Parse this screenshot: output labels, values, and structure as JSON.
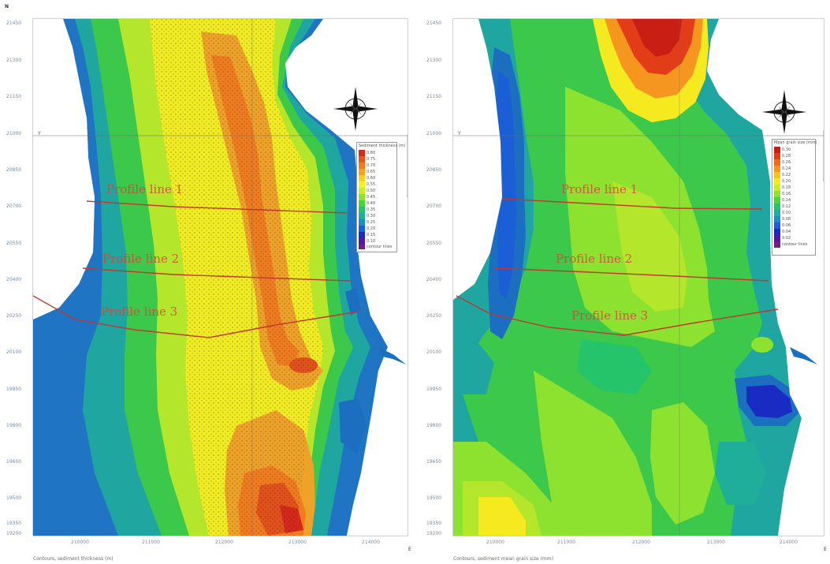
{
  "maps": [
    {
      "id": "left",
      "y_ticks": [
        "21450",
        "21300",
        "21150",
        "21000",
        "20850",
        "20700",
        "20550",
        "20400",
        "20250",
        "20100",
        "19950",
        "19800",
        "19650",
        "19500",
        "19350",
        "19200"
      ],
      "x_ticks": [
        "210000",
        "211000",
        "212000",
        "213000",
        "214000"
      ],
      "corner_label": "N",
      "axis_end_label": "E",
      "grid_label": "Y",
      "caption": "Contours, sediment thickness (m)",
      "profile_labels": [
        "Profile line 1",
        "Profile line 2",
        "Profile line 3"
      ],
      "legend": {
        "title": "Sediment thickness (m)",
        "entries": [
          "0.80",
          "0.75",
          "0.70",
          "0.65",
          "0.60",
          "0.55",
          "0.50",
          "0.45",
          "0.40",
          "0.35",
          "0.30",
          "0.25",
          "0.20",
          "0.15",
          "0.10",
          "contour lines"
        ],
        "colors": [
          "#d42a1a",
          "#e8541c",
          "#f27a1f",
          "#f7a21f",
          "#f5d21f",
          "#f7f01f",
          "#c8ee28",
          "#8ce22e",
          "#4ed23a",
          "#25c46a",
          "#1fae9a",
          "#1c8fc0",
          "#1a5fd6",
          "#1a2bc4",
          "#4a1aa0",
          "#7a1a80"
        ]
      }
    },
    {
      "id": "right",
      "y_ticks": [
        "21450",
        "21300",
        "21150",
        "21000",
        "20850",
        "20700",
        "20550",
        "20400",
        "20250",
        "20100",
        "19950",
        "19800",
        "19650",
        "19500",
        "19350",
        "19200"
      ],
      "x_ticks": [
        "210000",
        "211000",
        "212000",
        "213000",
        "214000"
      ],
      "corner_label": "",
      "axis_end_label": "E",
      "grid_label": "Y",
      "caption": "Contours, sediment mean grain size (mm)",
      "profile_labels": [
        "Profile line 1",
        "Profile line 2",
        "Profile line 3"
      ],
      "legend": {
        "title": "Mean grain size (mm)",
        "entries": [
          "0.30",
          "0.28",
          "0.26",
          "0.24",
          "0.22",
          "0.20",
          "0.18",
          "0.16",
          "0.14",
          "0.12",
          "0.10",
          "0.08",
          "0.06",
          "0.04",
          "0.02",
          "contour lines"
        ],
        "colors": [
          "#c81e14",
          "#e23c18",
          "#f06a1c",
          "#f5961f",
          "#f5c21f",
          "#f5ea1f",
          "#c8ee28",
          "#8ce22e",
          "#4ed23a",
          "#25c46a",
          "#1fae9a",
          "#1c8fc0",
          "#1a5fd6",
          "#1a2bc4",
          "#4a1aa0",
          "#7a1a80"
        ]
      }
    }
  ]
}
